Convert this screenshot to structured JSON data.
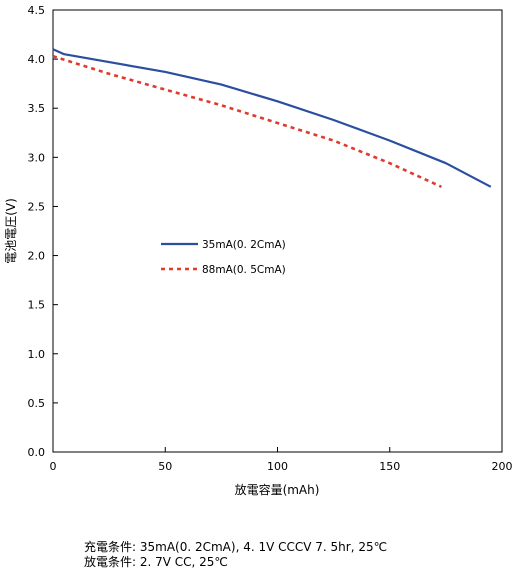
{
  "chart_data": {
    "type": "line",
    "xlabel": "放電容量(mAh)",
    "ylabel": "電池電圧(V)",
    "xlim": [
      0,
      200
    ],
    "ylim": [
      0,
      4.5
    ],
    "x_ticks": [
      0,
      50,
      100,
      150,
      200
    ],
    "y_ticks": [
      0.0,
      0.5,
      1.0,
      1.5,
      2.0,
      2.5,
      3.0,
      3.5,
      4.0,
      4.5
    ],
    "grid": false,
    "legend_position": "middle-left",
    "series": [
      {
        "name": "35mA(0. 2CmA)",
        "color": "#2b4ea0",
        "line_style": "solid",
        "x": [
          0,
          5,
          25,
          50,
          75,
          100,
          125,
          150,
          175,
          195
        ],
        "y": [
          4.1,
          4.05,
          3.97,
          3.87,
          3.74,
          3.57,
          3.38,
          3.17,
          2.94,
          2.7
        ]
      },
      {
        "name": "88mA(0. 5CmA)",
        "color": "#e03a2f",
        "line_style": "dashed",
        "x": [
          0,
          25,
          50,
          75,
          100,
          125,
          150,
          173
        ],
        "y": [
          4.03,
          3.85,
          3.69,
          3.53,
          3.35,
          3.17,
          2.94,
          2.7
        ]
      }
    ]
  },
  "footnotes": {
    "charge": "充電条件: 35mA(0. 2CmA), 4. 1V CCCV 7. 5hr, 25℃",
    "discharge": "放電条件: 2. 7V CC, 25℃"
  }
}
